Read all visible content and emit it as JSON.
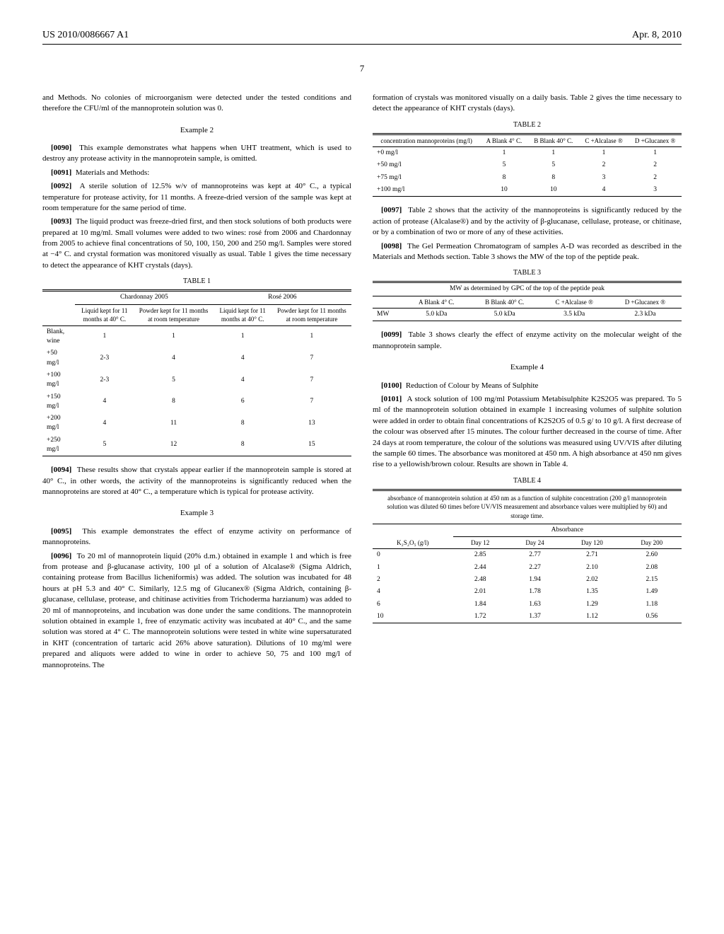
{
  "header": {
    "docid": "US 2010/0086667 A1",
    "date": "Apr. 8, 2010"
  },
  "page_num": "7",
  "col1": {
    "intro": "and Methods. No colonies of microorganism were detected under the tested conditions and therefore the CFU/ml of the mannoprotein solution was 0.",
    "ex2_title": "Example 2",
    "p0090": "This example demonstrates what happens when UHT treatment, which is used to destroy any protease activity in the mannoprotein sample, is omitted.",
    "p0091": "Materials and Methods:",
    "p0092": "A sterile solution of 12.5% w/v of mannoproteins was kept at 40° C., a typical temperature for protease activity, for 11 months. A freeze-dried version of the sample was kept at room temperature for the same period of time.",
    "p0093": "The liquid product was freeze-dried first, and then stock solutions of both products were prepared at 10 mg/ml. Small volumes were added to two wines: rosé from 2006 and Chardonnay from 2005 to achieve final concentrations of 50, 100, 150, 200 and 250 mg/l. Samples were stored at −4° C. and crystal formation was monitored visually as usual. Table 1 gives the time necessary to detect the appearance of KHT crystals (days).",
    "p0094": "These results show that crystals appear earlier if the mannoprotein sample is stored at 40° C., in other words, the activity of the mannoproteins is significantly reduced when the mannoproteins are stored at 40° C., a temperature which is typical for protease activity.",
    "ex3_title": "Example 3",
    "p0095": "This example demonstrates the effect of enzyme activity on performance of mannoproteins.",
    "p0096": "To 20 ml of mannoprotein liquid (20% d.m.) obtained in example 1 and which is free from protease and β-glucanase activity, 100 µl of a solution of Alcalase® (Sigma Aldrich, containing protease from Bacillus licheniformis) was added. The solution was incubated for 48 hours at pH 5.3 and 40° C. Similarly, 12.5 mg of Glucanex® (Sigma Aldrich, containing β-glucanase, cellulase, protease, and chitinase activities from Trichoderma harzianum) was added to 20 ml of mannoproteins, and incubation was done under the same conditions. The mannoprotein solution obtained in example 1, free of enzymatic activity was incubated at 40° C., and the same solution was stored at 4° C. The mannoprotein solutions were tested in white wine supersaturated in KHT (concentration of tartaric acid 26% above saturation). Dilutions of 10 mg/ml were prepared and aliquots were added to wine in order to achieve 50, 75 and 100 mg/l of mannoproteins. The"
  },
  "table1": {
    "caption": "TABLE 1",
    "group1": "Chardonnay 2005",
    "group2": "Rosé 2006",
    "h1": "Liquid kept for 11 months at 40° C.",
    "h2": "Powder kept for 11 months at room temperature",
    "h3": "Liquid kept for 11 months at 40° C.",
    "h4": "Powder kept for 11 months at room temperature",
    "rows": [
      {
        "label": "Blank, wine",
        "c1": "1",
        "c2": "1",
        "c3": "1",
        "c4": "1"
      },
      {
        "label": "+50 mg/l",
        "c1": "2-3",
        "c2": "4",
        "c3": "4",
        "c4": "7"
      },
      {
        "label": "+100 mg/l",
        "c1": "2-3",
        "c2": "5",
        "c3": "4",
        "c4": "7"
      },
      {
        "label": "+150 mg/l",
        "c1": "4",
        "c2": "8",
        "c3": "6",
        "c4": "7"
      },
      {
        "label": "+200 mg/l",
        "c1": "4",
        "c2": "11",
        "c3": "8",
        "c4": "13"
      },
      {
        "label": "+250 mg/l",
        "c1": "5",
        "c2": "12",
        "c3": "8",
        "c4": "15"
      }
    ]
  },
  "col2": {
    "intro": "formation of crystals was monitored visually on a daily basis. Table 2 gives the time necessary to detect the appearance of KHT crystals (days).",
    "p0097": "Table 2 shows that the activity of the mannoproteins is significantly reduced by the action of protease (Alcalase®) and by the activity of β-glucanase, cellulase, protease, or chitinase, or by a combination of two or more of any of these activities.",
    "p0098": "The Gel Permeation Chromatogram of samples A-D was recorded as described in the Materials and Methods section. Table 3 shows the MW of the top of the peptide peak.",
    "p0099": "Table 3 shows clearly the effect of enzyme activity on the molecular weight of the mannoprotein sample.",
    "ex4_title": "Example 4",
    "p0100": "Reduction of Colour by Means of Sulphite",
    "p0101": "A stock solution of 100 mg/ml Potassium Metabisulphite K2S2O5 was prepared. To 5 ml of the mannoprotein solution obtained in example 1 increasing volumes of sulphite solution were added in order to obtain final concentrations of K2S2O5 of 0.5 g/ to 10 g/l. A first decrease of the colour was observed after 15 minutes. The colour further decreased in the course of time. After 24 days at room temperature, the colour of the solutions was measured using UV/VIS after diluting the sample 60 times. The absorbance was monitored at 450 nm. A high absorbance at 450 nm gives rise to a yellowish/brown colour. Results are shown in Table 4."
  },
  "table2": {
    "caption": "TABLE 2",
    "h0": "concentration mannoproteins (mg/l)",
    "h1": "A Blank 4° C.",
    "h2": "B Blank 40° C.",
    "h3": "C +Alcalase ®",
    "h4": "D +Glucanex ®",
    "rows": [
      {
        "label": "+0 mg/l",
        "c1": "1",
        "c2": "1",
        "c3": "1",
        "c4": "1"
      },
      {
        "label": "+50 mg/l",
        "c1": "5",
        "c2": "5",
        "c3": "2",
        "c4": "2"
      },
      {
        "label": "+75 mg/l",
        "c1": "8",
        "c2": "8",
        "c3": "3",
        "c4": "2"
      },
      {
        "label": "+100 mg/l",
        "c1": "10",
        "c2": "10",
        "c3": "4",
        "c4": "3"
      }
    ]
  },
  "table3": {
    "caption": "TABLE 3",
    "title": "MW as determined by GPC of the top of the peptide peak",
    "h1": "A Blank 4° C.",
    "h2": "B Blank 40° C.",
    "h3": "C +Alcalase ®",
    "h4": "D +Glucanex ®",
    "row_label": "MW",
    "r1": "5.0 kDa",
    "r2": "5.0 kDa",
    "r3": "3.5 kDa",
    "r4": "2.3 kDa"
  },
  "table4": {
    "caption": "TABLE 4",
    "title": "absorbance of mannoprotein solution at 450 nm as a function of sulphite concentration (200 g/l mannoprotein solution was diluted 60 times before UV/VIS measurement and absorbance values were multiplied by 60) and storage time.",
    "group": "Absorbance",
    "h0": "K₂S₂O₅ (g/l)",
    "h1": "Day 12",
    "h2": "Day 24",
    "h3": "Day 120",
    "h4": "Day 200",
    "rows": [
      {
        "label": "0",
        "c1": "2.85",
        "c2": "2.77",
        "c3": "2.71",
        "c4": "2.60"
      },
      {
        "label": "1",
        "c1": "2.44",
        "c2": "2.27",
        "c3": "2.10",
        "c4": "2.08"
      },
      {
        "label": "2",
        "c1": "2.48",
        "c2": "1.94",
        "c3": "2.02",
        "c4": "2.15"
      },
      {
        "label": "4",
        "c1": "2.01",
        "c2": "1.78",
        "c3": "1.35",
        "c4": "1.49"
      },
      {
        "label": "6",
        "c1": "1.84",
        "c2": "1.63",
        "c3": "1.29",
        "c4": "1.18"
      },
      {
        "label": "10",
        "c1": "1.72",
        "c2": "1.37",
        "c3": "1.12",
        "c4": "0.56"
      }
    ]
  }
}
